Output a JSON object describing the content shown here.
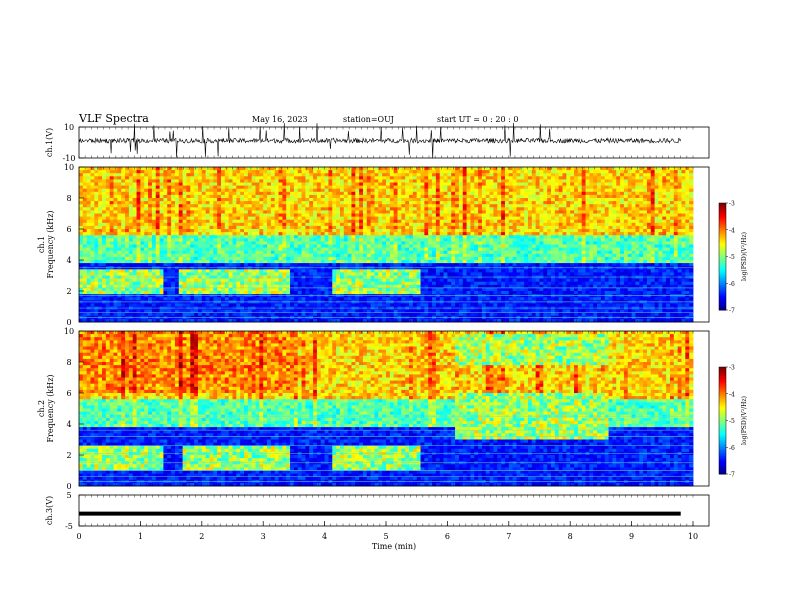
{
  "header": {
    "title": "VLF Spectra",
    "date": "May 16, 2023",
    "station": "station=OUJ",
    "start": "start  UT =   0 : 20 : 0"
  },
  "chart_data": [
    {
      "type": "line",
      "panel": "ch1",
      "ylabel": "ch.1(V)",
      "yticks": [
        "10",
        "-10"
      ],
      "ylim": [
        -10,
        10
      ],
      "x": [
        0,
        10
      ],
      "note_series": "noisy waveform centred near 0 V with spikes"
    },
    {
      "type": "heatmap",
      "panel": "ch1-spectrogram",
      "ylabel": "ch.1\nFrequency (kHz)",
      "yticks": [
        "0",
        "2",
        "4",
        "6",
        "8",
        "10"
      ],
      "ylim": [
        0,
        10
      ],
      "colorbar": {
        "label": "log(PSD)(V²/Hz)",
        "ticks": [
          "-3",
          "-4",
          "-5",
          "-6",
          "-7"
        ],
        "range": [
          -7,
          -3
        ]
      },
      "bands": [
        {
          "t_start": 0,
          "t_end": 1.4,
          "f_low": 1.8,
          "f_high": 3.4
        },
        {
          "t_start": 1.6,
          "t_end": 3.45,
          "f_low": 1.8,
          "f_high": 3.4
        },
        {
          "t_start": 4.1,
          "t_end": 5.55,
          "f_low": 1.8,
          "f_high": 3.4
        }
      ]
    },
    {
      "type": "heatmap",
      "panel": "ch2-spectrogram",
      "ylabel": "ch.2\nFrequency (kHz)",
      "yticks": [
        "0",
        "2",
        "4",
        "6",
        "8",
        "10"
      ],
      "ylim": [
        0,
        10
      ],
      "colorbar": {
        "label": "log(PSD)(V²/Hz)",
        "ticks": [
          "-3",
          "-4",
          "-5",
          "-6",
          "-7"
        ],
        "range": [
          -7,
          -3
        ]
      },
      "bands": [
        {
          "t_start": 0,
          "t_end": 1.4,
          "f_low": 1.0,
          "f_high": 2.6
        },
        {
          "t_start": 1.7,
          "t_end": 3.45,
          "f_low": 1.0,
          "f_high": 2.6
        },
        {
          "t_start": 4.1,
          "t_end": 5.55,
          "f_low": 1.0,
          "f_high": 2.6
        },
        {
          "t_start": 6.1,
          "t_end": 8.6,
          "f_low": 3.0,
          "f_high": 6.0
        },
        {
          "t_start": 6.1,
          "t_end": 8.6,
          "f_low": 7.8,
          "f_high": 9.8
        }
      ]
    },
    {
      "type": "line",
      "panel": "ch3",
      "ylabel": "ch.3(V)",
      "yticks": [
        "5",
        "-5"
      ],
      "ylim": [
        -5,
        5
      ],
      "x": [
        0,
        10
      ],
      "y_constant": -1.0
    }
  ],
  "xaxis": {
    "label": "Time  (min)",
    "ticks": [
      "0",
      "1",
      "2",
      "3",
      "4",
      "5",
      "6",
      "7",
      "8",
      "9",
      "10"
    ],
    "xlim": [
      0,
      10
    ]
  }
}
